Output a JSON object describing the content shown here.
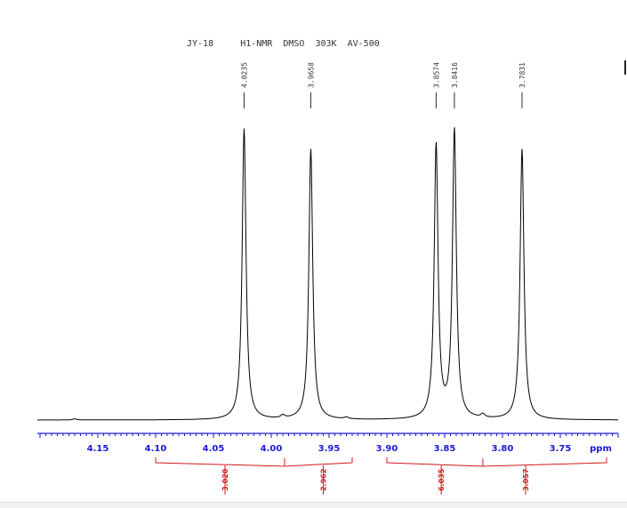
{
  "chart_data": {
    "type": "line",
    "title": "JY-18     H1-NMR  DMSO  303K  AV-500",
    "xlabel": "ppm",
    "ylabel": "",
    "xlim": [
      4.2,
      3.7
    ],
    "x_reversed": true,
    "ylim": [
      0,
      1
    ],
    "grid": false,
    "ticks": [
      "4.15",
      "4.10",
      "4.05",
      "4.00",
      "3.95",
      "3.90",
      "3.85",
      "3.80",
      "3.75"
    ],
    "tick_values": [
      4.15,
      4.1,
      4.05,
      4.0,
      3.95,
      3.9,
      3.85,
      3.8,
      3.75
    ],
    "peaks": [
      {
        "ppm": 4.0235,
        "label": "4.0235",
        "height": 0.99
      },
      {
        "ppm": 3.9658,
        "label": "3.9658",
        "height": 0.92
      },
      {
        "ppm": 3.8574,
        "label": "3.8574",
        "height": 0.93
      },
      {
        "ppm": 3.8416,
        "label": "3.8416",
        "height": 0.98
      },
      {
        "ppm": 3.7831,
        "label": "3.7831",
        "height": 0.92
      }
    ],
    "linewidth": 0.002,
    "baseline_bumps": [
      {
        "ppm": 4.17,
        "height": 0.004
      },
      {
        "ppm": 3.99,
        "height": 0.01
      },
      {
        "ppm": 3.935,
        "height": 0.006
      },
      {
        "ppm": 3.817,
        "height": 0.012
      }
    ],
    "integrals": [
      {
        "from": 4.1,
        "to": 3.93,
        "regions": [
          {
            "from": 4.1,
            "to": 4.0,
            "value": "3.020"
          },
          {
            "from": 4.0,
            "to": 3.93,
            "value": "2.962"
          }
        ],
        "mid": 3.9885
      },
      {
        "from": 3.9,
        "to": 3.71,
        "regions": [
          {
            "from": 3.9,
            "to": 3.817,
            "value": "6.035"
          },
          {
            "from": 3.817,
            "to": 3.71,
            "value": "3.057"
          }
        ],
        "mid": 3.817
      }
    ],
    "integral_labels": [
      {
        "value": "3.020",
        "ppm": 4.04
      },
      {
        "value": "2.962",
        "ppm": 3.955
      },
      {
        "value": "6.035",
        "ppm": 3.853
      },
      {
        "value": "3.057",
        "ppm": 3.78
      }
    ],
    "colors": {
      "spectrum": "#000000",
      "axis": "#1a1ad6",
      "integral": "#d11a1a",
      "text": "#333333"
    }
  }
}
